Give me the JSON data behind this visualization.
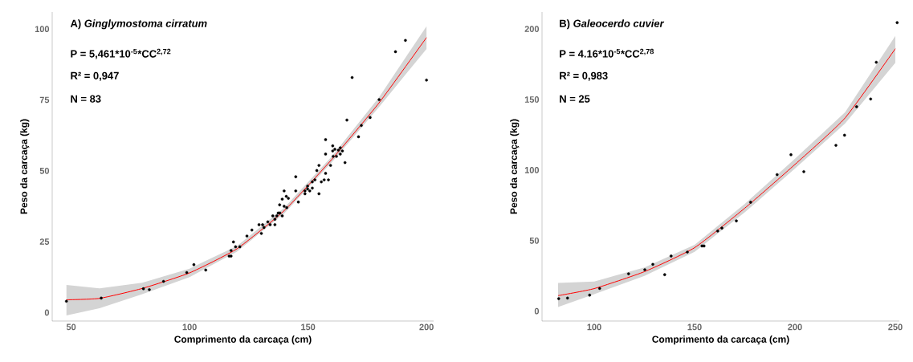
{
  "chart_data": [
    {
      "type": "scatter",
      "title": "A) *Ginglymostoma cirratum*",
      "xlabel": "Comprimento da carcaça (cm)",
      "ylabel": "Peso da carcaça (kg)",
      "xlim": [
        42,
        203
      ],
      "ylim": [
        -3,
        106
      ],
      "xticks": [
        50,
        100,
        150,
        200
      ],
      "yticks": [
        0,
        25,
        50,
        75,
        100
      ],
      "annotations": [
        "P  =  5,461*10$^{-5}$*CC$^{2,72}$",
        "R² = 0,947",
        "N = 83"
      ],
      "series": [
        {
          "type": "line",
          "marker": "none",
          "color": "#ff0000",
          "x": [
            48,
            62,
            80,
            100,
            120,
            140,
            160,
            180,
            200
          ],
          "values": [
            4.5,
            5,
            8.5,
            14,
            22.5,
            36,
            54,
            74,
            97
          ],
          "lower": [
            -1,
            1.5,
            6.5,
            12.5,
            21.5,
            35,
            53,
            72.5,
            93
          ],
          "upper": [
            9.7,
            8.5,
            10.5,
            15.5,
            23.5,
            37,
            55,
            76,
            101
          ]
        },
        {
          "marker": "circle",
          "color": "#000000",
          "x": [
            48,
            62.7,
            80.5,
            83,
            89,
            98.8,
            101.8,
            106.8,
            116.7,
            117.5,
            117.5,
            118.5,
            119.4,
            121.2,
            124.2,
            126.3,
            129.3,
            130.3,
            130.8,
            131.4,
            133,
            134,
            135.1,
            136,
            136,
            136.8,
            137.4,
            138.1,
            139.1,
            138,
            139.1,
            139.9,
            140.8,
            141.7,
            141,
            139.9,
            144.8,
            144.8,
            145.9,
            148.7,
            148.7,
            149.8,
            149.8,
            150.7,
            151.8,
            151.8,
            152.9,
            153.7,
            154.6,
            154.6,
            155.6,
            156.8,
            157.4,
            157.4,
            157.4,
            158.6,
            159.5,
            160.4,
            160.4,
            160.6,
            161.3,
            162,
            162.8,
            163.6,
            163.6,
            164.5,
            165.6,
            166.4,
            168.6,
            171.3,
            172.5,
            176.2,
            180,
            186.9,
            191.1,
            200
          ],
          "values": [
            4,
            5.1,
            8.4,
            8.1,
            11,
            14.1,
            16.9,
            15,
            19.9,
            19.9,
            21.9,
            24.9,
            23.2,
            23.2,
            27,
            29.1,
            31,
            27.9,
            31,
            30,
            32,
            31,
            34.1,
            31,
            32.9,
            34.1,
            35.1,
            35.1,
            34.1,
            38,
            40,
            42.9,
            41,
            40.3,
            37,
            37.5,
            47.9,
            42.9,
            39,
            41.9,
            42.9,
            44.6,
            43.6,
            42.9,
            43.9,
            46.1,
            46.8,
            50.1,
            51.9,
            41.9,
            46.1,
            46.8,
            49.1,
            55.9,
            61,
            46.8,
            51.9,
            58.8,
            57,
            55.1,
            57.6,
            55.1,
            57.3,
            58.1,
            55.9,
            57,
            52.9,
            67.9,
            82.9,
            62,
            66,
            68.8,
            75.1,
            92,
            96,
            82
          ]
        }
      ]
    },
    {
      "type": "scatter",
      "title": "B) *Galeocerdo cuvier*",
      "xlabel": "Comprimento da carcaça (cm)",
      "ylabel": "Peso da carcaça (kg)",
      "xlim": [
        74,
        252
      ],
      "ylim": [
        -7,
        212
      ],
      "xticks": [
        100,
        150,
        200,
        250
      ],
      "yticks": [
        0,
        50,
        100,
        150,
        200
      ],
      "annotations": [
        "P  =  4.16*10$^{-5}$*CC$^{2,78}$",
        "R² = 0,983",
        "N = 25"
      ],
      "series": [
        {
          "type": "line",
          "marker": "none",
          "color": "#ff0000",
          "x": [
            82,
            100,
            125,
            150,
            175,
            200,
            225,
            250
          ],
          "values": [
            11,
            16,
            28,
            45,
            73,
            104,
            137,
            186
          ],
          "lower": [
            3,
            12,
            25,
            42,
            70,
            101,
            133,
            176
          ],
          "upper": [
            20,
            21,
            31,
            47,
            76,
            108,
            141,
            195
          ]
        },
        {
          "marker": "circle",
          "color": "#000000",
          "x": [
            82.3,
            86.7,
            97.7,
            102.7,
            117.1,
            125.2,
            129.2,
            135.1,
            138.3,
            146.4,
            153.7,
            154.7,
            161.5,
            163.6,
            170.8,
            177.9,
            191.1,
            198,
            204.4,
            220.4,
            224.7,
            230.7,
            237.7,
            240.5,
            250.9
          ],
          "values": [
            8.9,
            9.3,
            11.4,
            16.1,
            26.5,
            29.4,
            33.2,
            25.9,
            39.1,
            41.9,
            46.2,
            46.2,
            56.8,
            58.9,
            64,
            77.2,
            96.8,
            110.9,
            98.9,
            117.5,
            124.7,
            144.9,
            150.4,
            176.4,
            204.5
          ]
        }
      ]
    }
  ]
}
